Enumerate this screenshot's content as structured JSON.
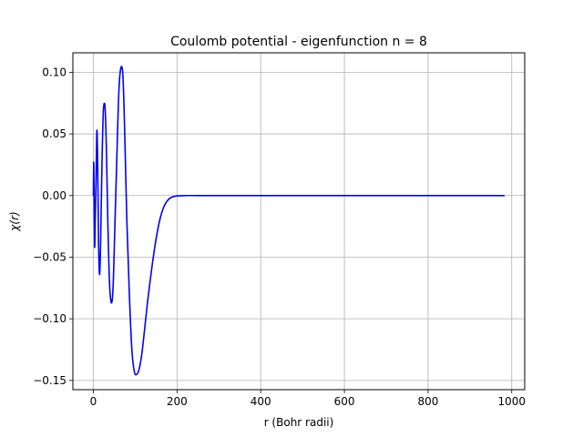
{
  "chart_data": {
    "type": "line",
    "title": "Coulomb potential - eigenfunction n = 8",
    "xlabel": "r  (Bohr radii)",
    "ylabel": "χ(r)",
    "xlim": [
      -49,
      1031
    ],
    "ylim": [
      -0.1575,
      0.1158
    ],
    "grid": true,
    "x_ticks": [
      {
        "value": 0,
        "label": "0"
      },
      {
        "value": 200,
        "label": "200"
      },
      {
        "value": 400,
        "label": "400"
      },
      {
        "value": 600,
        "label": "600"
      },
      {
        "value": 800,
        "label": "800"
      },
      {
        "value": 1000,
        "label": "1000"
      }
    ],
    "y_ticks": [
      {
        "value": 0.1,
        "label": "0.10"
      },
      {
        "value": 0.05,
        "label": "0.05"
      },
      {
        "value": 0.0,
        "label": "0.00"
      },
      {
        "value": -0.05,
        "label": "−0.05"
      },
      {
        "value": -0.1,
        "label": "−0.10"
      },
      {
        "value": -0.15,
        "label": "−0.15"
      }
    ],
    "series": [
      {
        "name": "eigenfunction n = 8",
        "color": "#0000ff",
        "x": [
          0,
          0.8,
          1.6,
          3,
          4.5,
          6.5,
          8.5,
          10.5,
          12.5,
          15,
          17.5,
          20.5,
          24,
          27.5,
          31,
          34.5,
          38.5,
          43,
          47,
          51,
          56,
          61,
          66,
          70.5,
          75,
          80,
          86,
          92,
          98,
          104,
          110,
          116,
          122,
          130,
          140,
          150,
          160,
          170,
          180,
          190,
          200,
          220,
          250,
          300,
          400,
          600,
          800,
          983
        ],
        "y": [
          0,
          0.027,
          0.005,
          -0.042,
          -0.02,
          0.015,
          0.053,
          0.02,
          -0.04,
          -0.064,
          -0.035,
          0.025,
          0.07,
          0.074,
          0.04,
          -0.02,
          -0.07,
          -0.087,
          -0.075,
          -0.03,
          0.03,
          0.085,
          0.104,
          0.098,
          0.05,
          -0.02,
          -0.08,
          -0.125,
          -0.143,
          -0.145,
          -0.14,
          -0.128,
          -0.11,
          -0.085,
          -0.058,
          -0.035,
          -0.018,
          -0.008,
          -0.003,
          -0.001,
          -0.0003,
          0,
          0,
          0,
          0,
          0,
          0,
          0
        ]
      }
    ]
  }
}
